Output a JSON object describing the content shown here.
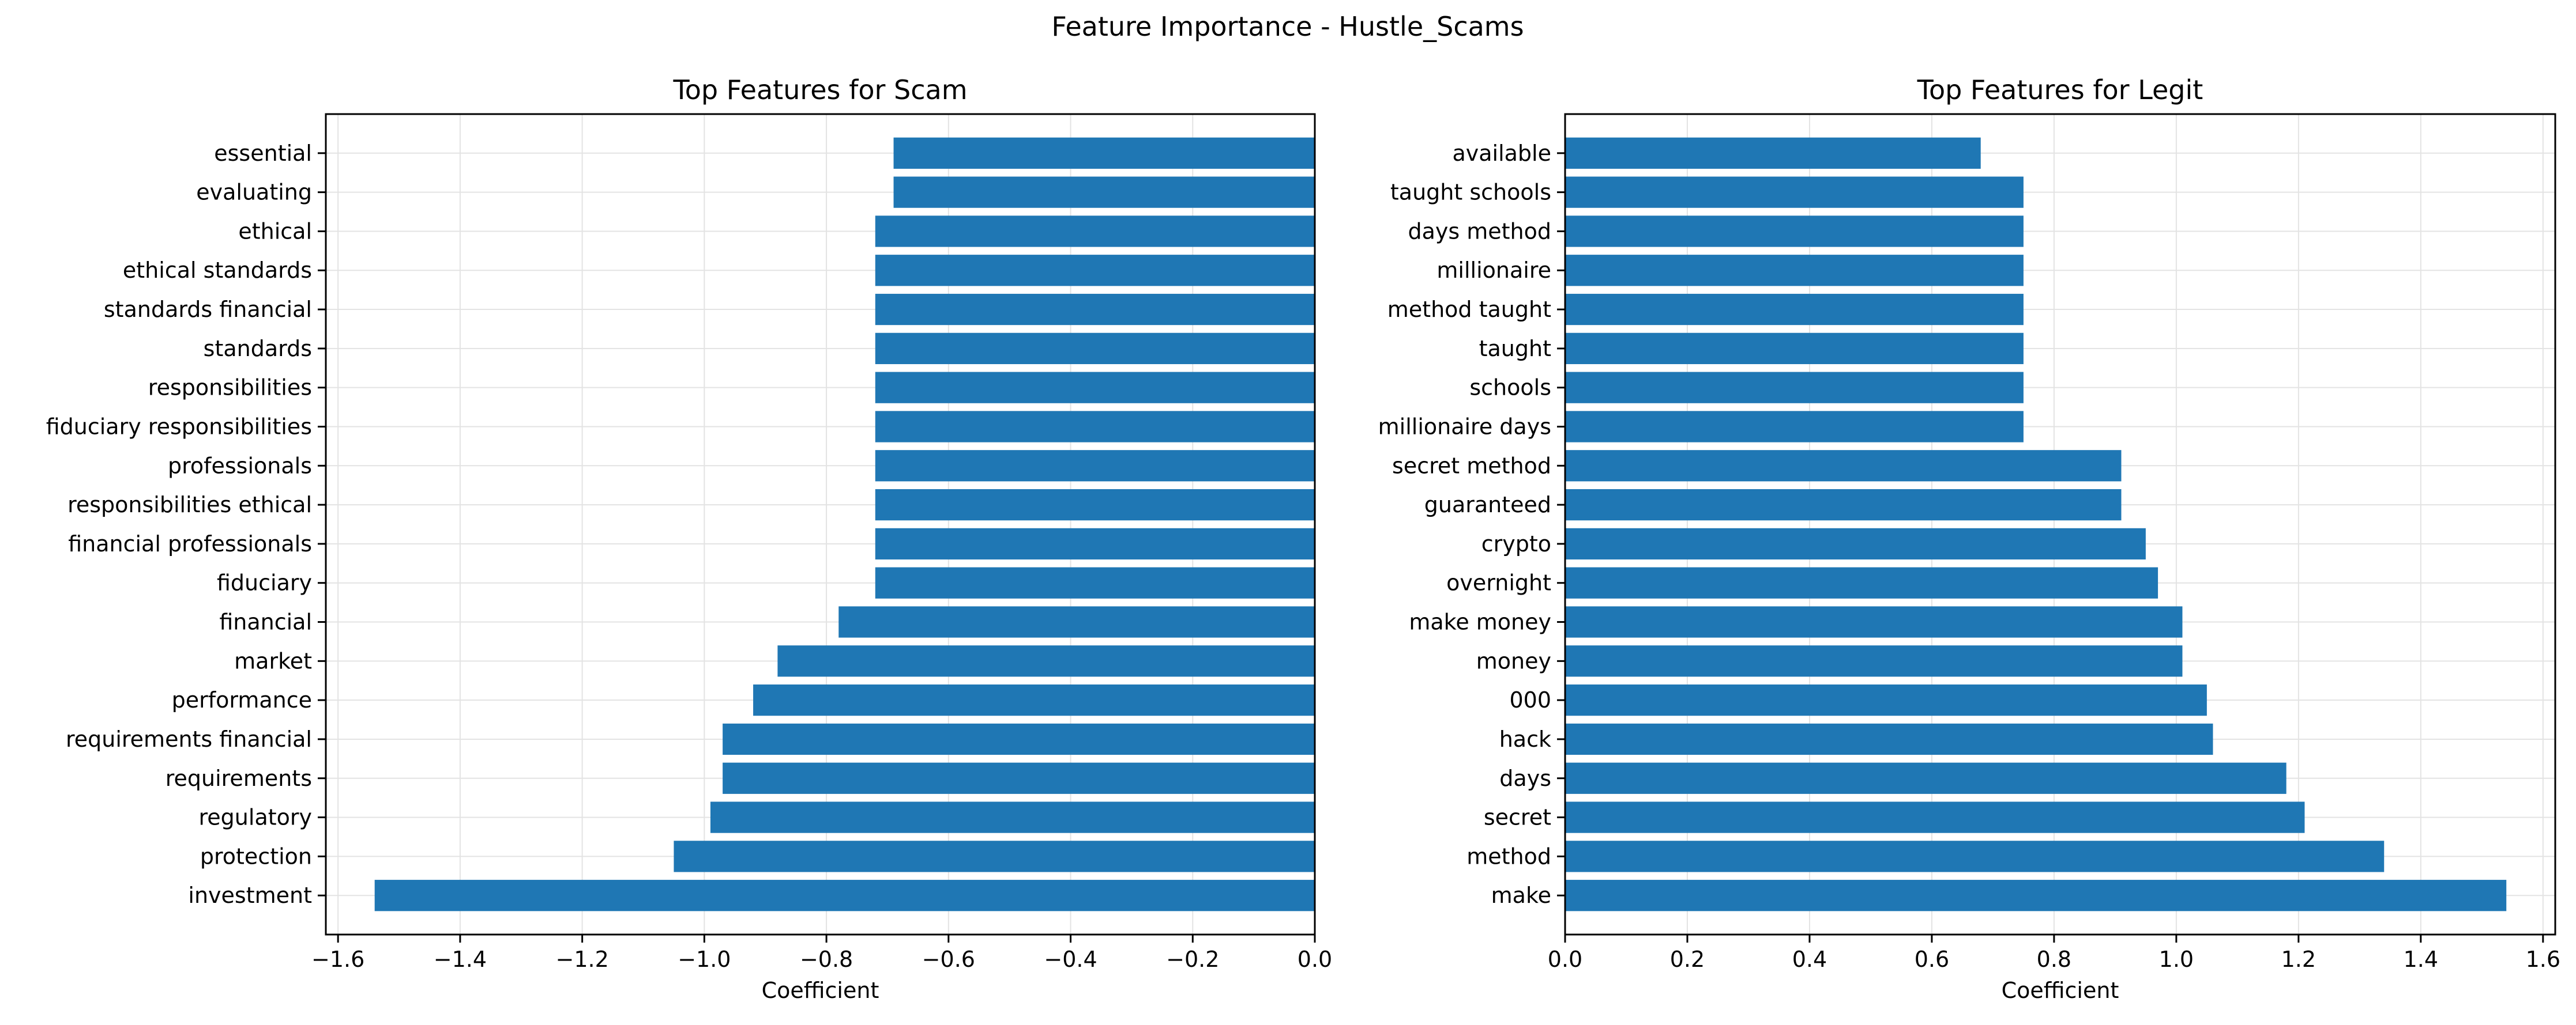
{
  "figure": {
    "suptitle": "Feature Importance - Hustle_Scams"
  },
  "colors": {
    "bar": "#1f77b4",
    "grid": "#e3e3e3",
    "axis": "#000000",
    "background": "#ffffff"
  },
  "chart_data": [
    {
      "type": "bar",
      "orientation": "horizontal",
      "title": "Top Features for Scam",
      "xlabel": "Coefficient",
      "ylabel": "",
      "xlim": [
        -1.62,
        0.0
      ],
      "xticks": [
        -1.6,
        -1.4,
        -1.2,
        -1.0,
        -0.8,
        -0.6,
        -0.4,
        -0.2,
        0.0
      ],
      "xtick_labels": [
        "−1.6",
        "−1.4",
        "−1.2",
        "−1.0",
        "−0.8",
        "−0.6",
        "−0.4",
        "−0.2",
        "0.0"
      ],
      "grid": true,
      "categories": [
        "essential",
        "evaluating",
        "ethical",
        "ethical standards",
        "standards financial",
        "standards",
        "responsibilities",
        "fiduciary responsibilities",
        "professionals",
        "responsibilities ethical",
        "financial professionals",
        "fiduciary",
        "financial",
        "market",
        "performance",
        "requirements financial",
        "requirements",
        "regulatory",
        "protection",
        "investment"
      ],
      "values": [
        -0.69,
        -0.69,
        -0.72,
        -0.72,
        -0.72,
        -0.72,
        -0.72,
        -0.72,
        -0.72,
        -0.72,
        -0.72,
        -0.72,
        -0.78,
        -0.88,
        -0.92,
        -0.97,
        -0.97,
        -0.99,
        -1.05,
        -1.54
      ]
    },
    {
      "type": "bar",
      "orientation": "horizontal",
      "title": "Top Features for Legit",
      "xlabel": "Coefficient",
      "ylabel": "",
      "xlim": [
        0.0,
        1.62
      ],
      "xticks": [
        0.0,
        0.2,
        0.4,
        0.6,
        0.8,
        1.0,
        1.2,
        1.4,
        1.6
      ],
      "xtick_labels": [
        "0.0",
        "0.2",
        "0.4",
        "0.6",
        "0.8",
        "1.0",
        "1.2",
        "1.4",
        "1.6"
      ],
      "grid": true,
      "categories": [
        "available",
        "taught schools",
        "days method",
        "millionaire",
        "method taught",
        "taught",
        "schools",
        "millionaire days",
        "secret method",
        "guaranteed",
        "crypto",
        "overnight",
        "make money",
        "money",
        "000",
        "hack",
        "days",
        "secret",
        "method",
        "make"
      ],
      "values": [
        0.68,
        0.75,
        0.75,
        0.75,
        0.75,
        0.75,
        0.75,
        0.75,
        0.91,
        0.91,
        0.95,
        0.97,
        1.01,
        1.01,
        1.05,
        1.06,
        1.18,
        1.21,
        1.34,
        1.54
      ]
    }
  ]
}
